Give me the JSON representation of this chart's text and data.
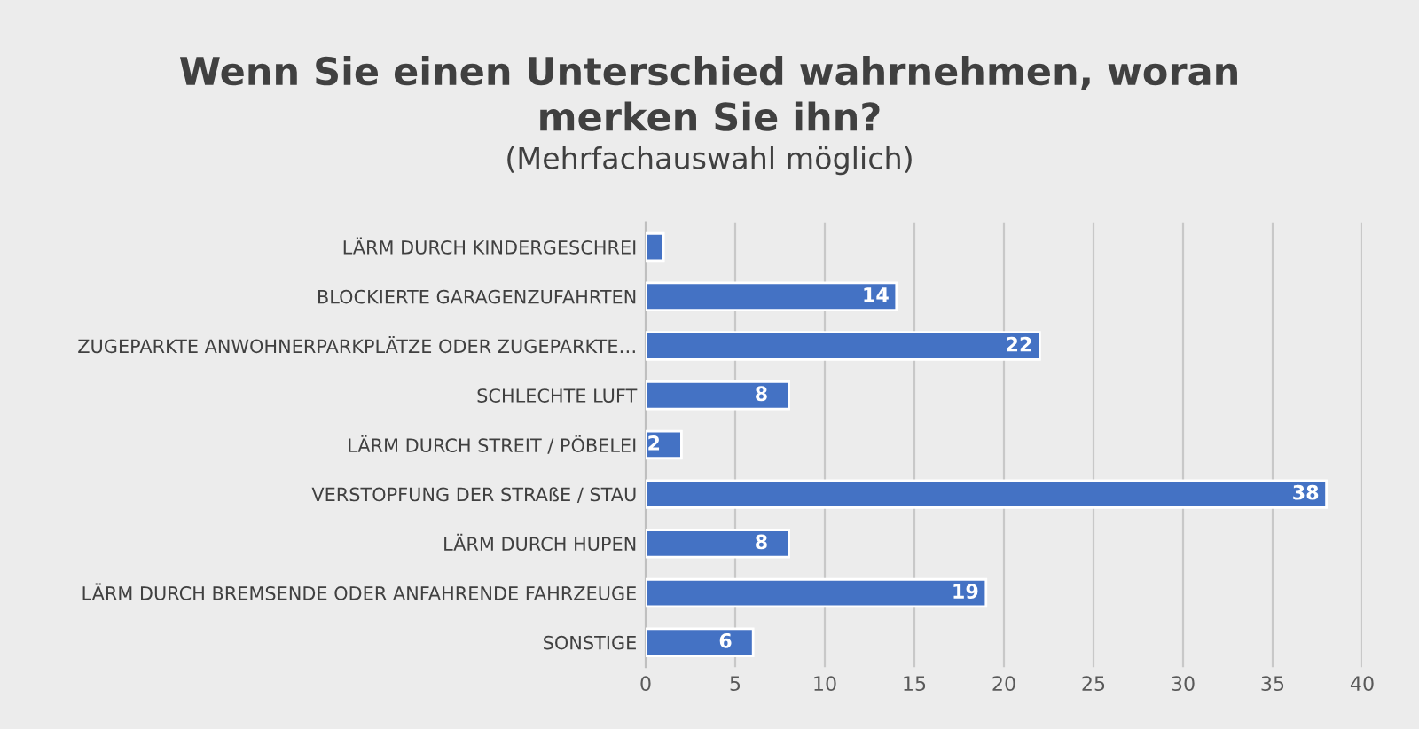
{
  "chart_data": {
    "type": "bar",
    "orientation": "horizontal",
    "title": "Wenn Sie einen Unterschied wahrnehmen, woran\nmerken Sie ihn?",
    "subtitle": "(Mehrfachauswahl möglich)",
    "categories": [
      "LÄRM DURCH KINDERGESCHREI",
      "BLOCKIERTE GARAGENZUFAHRTEN",
      "ZUGEPARKTE ANWOHNERPARKPLÄTZE ODER ZUGEPARKTE…",
      "SCHLECHTE LUFT",
      "LÄRM DURCH STREIT / PÖBELEI",
      "VERSTOPFUNG DER STRAßE / STAU",
      "LÄRM DURCH HUPEN",
      "LÄRM DURCH BREMSENDE ODER ANFAHRENDE FAHRZEUGE",
      "SONSTIGE"
    ],
    "values": [
      1,
      14,
      22,
      8,
      2,
      38,
      8,
      19,
      6
    ],
    "value_labels": [
      null,
      "14",
      "22",
      "8",
      "2",
      "38",
      "8",
      "19",
      "6"
    ],
    "color": "#4472c4",
    "xlim": [
      0,
      40
    ],
    "xticks": [
      0,
      5,
      10,
      15,
      20,
      25,
      30,
      35,
      40
    ],
    "grid": "x"
  }
}
